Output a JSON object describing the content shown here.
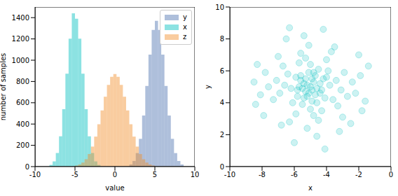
{
  "chart_data": [
    {
      "type": "histogram",
      "xlabel": "value",
      "ylabel": "number of samples",
      "xlim": [
        -10,
        10
      ],
      "ylim": [
        0,
        1500
      ],
      "xticks": [
        -10,
        -5,
        0,
        5,
        10
      ],
      "yticks": [
        0,
        200,
        400,
        600,
        800,
        1000,
        1200,
        1400
      ],
      "legend": "upper right",
      "series": [
        {
          "name": "y",
          "color": "#4c72b0",
          "bins": [
            1.8,
            2.2,
            2.6,
            3.0,
            3.4,
            3.8,
            4.2,
            4.6,
            5.0,
            5.4,
            5.8,
            6.2,
            6.6,
            7.0,
            7.4,
            7.8,
            8.2,
            8.6
          ],
          "values": [
            20,
            53,
            127,
            261,
            480,
            758,
            1053,
            1284,
            1370,
            1284,
            1053,
            758,
            480,
            261,
            127,
            53,
            20
          ]
        },
        {
          "name": "x",
          "color": "#00bfbf",
          "bins": [
            -8.2,
            -7.8,
            -7.4,
            -7.0,
            -6.6,
            -6.2,
            -5.8,
            -5.4,
            -5.0,
            -4.6,
            -4.2,
            -3.8,
            -3.4,
            -3.0,
            -2.6,
            -2.2,
            -1.8
          ],
          "values": [
            16,
            49,
            128,
            285,
            540,
            874,
            1202,
            1440,
            1390,
            1202,
            874,
            540,
            285,
            128,
            49,
            16
          ]
        },
        {
          "name": "z",
          "color": "#f28e2b",
          "bins": [
            -5.0,
            -4.6,
            -4.2,
            -3.8,
            -3.4,
            -3.0,
            -2.6,
            -2.2,
            -1.8,
            -1.4,
            -1.0,
            -0.6,
            -0.2,
            0.2,
            0.6,
            1.0,
            1.4,
            1.8,
            2.2,
            2.6,
            3.0,
            3.4,
            3.8,
            4.2,
            4.6,
            5.0
          ],
          "values": [
            10,
            20,
            38,
            69,
            118,
            188,
            282,
            398,
            528,
            657,
            768,
            843,
            870,
            843,
            768,
            657,
            528,
            398,
            282,
            188,
            118,
            69,
            38,
            20,
            10
          ]
        }
      ]
    },
    {
      "type": "scatter",
      "xlabel": "x",
      "ylabel": "y",
      "xlim": [
        -10,
        0
      ],
      "ylim": [
        0,
        10
      ],
      "xticks": [
        -10,
        -8,
        -6,
        -4,
        -2,
        0
      ],
      "yticks": [
        0,
        2,
        4,
        6,
        8,
        10
      ],
      "color": "#00bfbf",
      "x": [
        -5.0,
        -4.8,
        -5.3,
        -5.6,
        -4.4,
        -5.1,
        -4.9,
        -5.8,
        -4.2,
        -5.4,
        -4.6,
        -5.2,
        -4.7,
        -5.9,
        -4.1,
        -5.5,
        -4.5,
        -6.2,
        -3.8,
        -5.0,
        -5.0,
        -6.4,
        -3.6,
        -6.1,
        -3.9,
        -5.7,
        -4.3,
        -6.6,
        -3.4,
        -5.3,
        -4.8,
        -6.9,
        -3.1,
        -5.9,
        -4.0,
        -6.7,
        -3.3,
        -7.1,
        -2.9,
        -5.6,
        -4.5,
        -7.3,
        -2.7,
        -6.3,
        -3.7,
        -7.0,
        -3.0,
        -7.6,
        -2.4,
        -5.1,
        -5.2,
        -7.8,
        -2.2,
        -6.8,
        -3.5,
        -8.1,
        -1.9,
        -5.4,
        -4.6,
        -8.3,
        -1.6,
        -6.0,
        -4.2,
        -2.0,
        -7.9,
        -1.4,
        -8.5,
        -6.5,
        -3.2,
        -5.5,
        -4.9,
        -5.2,
        -4.7,
        -5.4,
        -4.4,
        -5.7,
        -4.3,
        -5.1,
        -4.8,
        -5.6,
        -4.6,
        -5.8,
        -4.0,
        -5.3,
        -4.9,
        -1.8,
        -8.4,
        -4.1,
        -6.3,
        -2.5
      ],
      "y": [
        5.0,
        5.3,
        4.7,
        5.4,
        4.6,
        5.9,
        4.1,
        4.8,
        5.5,
        5.2,
        4.9,
        4.4,
        5.7,
        5.6,
        4.3,
        3.9,
        6.1,
        4.9,
        5.1,
        6.4,
        3.6,
        5.8,
        4.2,
        4.0,
        6.0,
        6.5,
        3.5,
        5.1,
        5.4,
        6.8,
        3.2,
        4.6,
        4.8,
        3.3,
        6.7,
        6.3,
        3.8,
        5.4,
        5.9,
        7.1,
        2.9,
        4.2,
        4.4,
        2.8,
        7.2,
        6.9,
        3.1,
        5.0,
        5.3,
        7.6,
        2.4,
        5.9,
        4.6,
        2.6,
        7.5,
        4.5,
        5.7,
        8.2,
        1.9,
        6.4,
        4.1,
        1.5,
        8.6,
        7.0,
        3.2,
        6.3,
        5.3,
        8.0,
        2.2,
        4.9,
        5.5,
        5.1,
        4.5,
        4.3,
        5.2,
        5.0,
        4.8,
        4.6,
        5.9,
        5.7,
        4.0,
        4.4,
        5.6,
        5.5,
        4.8,
        3.5,
        3.9,
        1.1,
        8.7,
        2.7
      ]
    }
  ]
}
